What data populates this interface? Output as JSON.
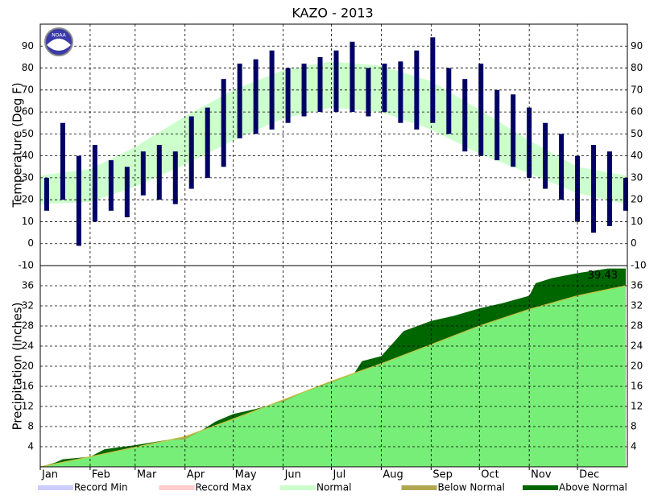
{
  "chart_data": [
    {
      "type": "range-bar",
      "title": "KAZO - 2013",
      "logo": "NOAA",
      "y_label": "Temperature (Deg F)",
      "x": [
        5,
        15,
        25,
        35,
        45,
        55,
        65,
        75,
        85,
        95,
        105,
        115,
        125,
        135,
        145,
        155,
        165,
        175,
        185,
        195,
        205,
        215,
        225,
        235,
        245,
        255,
        265,
        275,
        285,
        295,
        305,
        315,
        325,
        335,
        345,
        355,
        365
      ],
      "high": [
        30,
        55,
        40,
        45,
        38,
        35,
        42,
        45,
        42,
        58,
        62,
        75,
        82,
        84,
        88,
        80,
        82,
        85,
        88,
        92,
        80,
        82,
        83,
        88,
        94,
        80,
        75,
        82,
        70,
        68,
        62,
        55,
        50,
        40,
        45,
        42,
        30
      ],
      "low": [
        15,
        20,
        -1,
        10,
        15,
        12,
        22,
        20,
        18,
        25,
        30,
        35,
        48,
        50,
        52,
        55,
        58,
        60,
        60,
        60,
        58,
        60,
        55,
        52,
        55,
        50,
        42,
        40,
        38,
        35,
        30,
        25,
        20,
        10,
        5,
        8,
        15
      ],
      "color": "#000066",
      "normal_x": [
        1,
        32,
        60,
        91,
        121,
        152,
        182,
        213,
        244,
        274,
        305,
        335,
        365
      ],
      "normal_high": [
        31,
        34,
        44,
        58,
        70,
        79,
        83,
        81,
        74,
        61,
        47,
        35,
        31
      ],
      "normal_low": [
        18,
        19,
        26,
        36,
        47,
        57,
        62,
        60,
        52,
        41,
        32,
        23,
        18
      ],
      "normal_color": "#ccffcc",
      "xlim": [
        1,
        366
      ],
      "ylim": [
        -10,
        100
      ],
      "yticks": [
        -10,
        0,
        10,
        20,
        30,
        40,
        50,
        60,
        70,
        80,
        90
      ],
      "grid": true
    },
    {
      "type": "cumulative-area",
      "y_label": "Precipitation (Inches)",
      "x": [
        1,
        10,
        15,
        32,
        41,
        60,
        79,
        91,
        100,
        110,
        121,
        135,
        152,
        166,
        182,
        196,
        201,
        213,
        227,
        244,
        258,
        274,
        288,
        305,
        309,
        319,
        335,
        354,
        365
      ],
      "values": [
        0,
        0.8,
        1.5,
        2,
        3.5,
        4.3,
        5.3,
        5.5,
        7,
        9,
        10.5,
        11.5,
        13,
        15,
        16.8,
        18.5,
        21,
        22,
        27,
        29,
        30,
        31.5,
        32.5,
        34,
        36.5,
        37.5,
        38.5,
        39.43,
        39.43
      ],
      "normal_x": [
        1,
        32,
        60,
        91,
        121,
        152,
        182,
        213,
        244,
        274,
        305,
        335,
        365
      ],
      "normal_values": [
        0,
        2,
        3.9,
        6,
        9.5,
        13.3,
        17,
        20.5,
        24.3,
        28,
        31.3,
        34,
        36
      ],
      "normal_color": "#77ee77",
      "above_color": "#006600",
      "below_color": "#b0a850",
      "annotation": "39.43",
      "xlim": [
        1,
        366
      ],
      "ylim": [
        0,
        40
      ],
      "yticks": [
        4,
        8,
        12,
        16,
        20,
        24,
        28,
        32,
        36
      ],
      "grid": true,
      "xticks": [
        {
          "value": 1,
          "label": "Jan"
        },
        {
          "value": 32,
          "label": "Feb"
        },
        {
          "value": 60,
          "label": "Mar"
        },
        {
          "value": 91,
          "label": "Apr"
        },
        {
          "value": 121,
          "label": "May"
        },
        {
          "value": 152,
          "label": "Jun"
        },
        {
          "value": 182,
          "label": "Jul"
        },
        {
          "value": 213,
          "label": "Aug"
        },
        {
          "value": 244,
          "label": "Sep"
        },
        {
          "value": 274,
          "label": "Oct"
        },
        {
          "value": 305,
          "label": "Nov"
        },
        {
          "value": 335,
          "label": "Dec"
        }
      ],
      "legend": [
        {
          "name": "Record Min",
          "color": "#ccccff"
        },
        {
          "name": "Record Max",
          "color": "#ffcccc"
        },
        {
          "name": "Normal",
          "color": "#ccffcc"
        },
        {
          "name": "Below Normal",
          "color": "#b0a850"
        },
        {
          "name": "Above Normal",
          "color": "#006600"
        }
      ]
    }
  ]
}
